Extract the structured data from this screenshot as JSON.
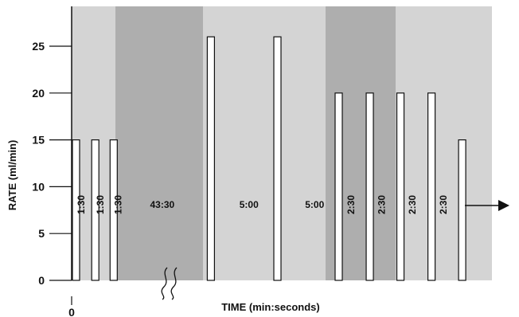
{
  "chart_data": {
    "type": "bar",
    "title": "",
    "xlabel": "TIME (min:seconds)",
    "ylabel": "RATE (ml/min)",
    "ylim": [
      0,
      27.5
    ],
    "y_ticks": [
      0,
      5,
      10,
      15,
      20,
      25
    ],
    "x_origin_label": "0",
    "grid": false,
    "axis_break": true,
    "continuation_arrow": true,
    "colors": {
      "light_band": "#d4d4d4",
      "dark_band": "#aeaeae",
      "pulse_fill": "#ffffff",
      "pulse_stroke": "#111111"
    },
    "bands": [
      {
        "shade": "light",
        "start": 0.0,
        "end": 1.0
      },
      {
        "shade": "dark",
        "start": 1.0,
        "end": 3.0
      },
      {
        "shade": "light",
        "start": 3.0,
        "end": 5.8
      },
      {
        "shade": "dark",
        "start": 5.8,
        "end": 7.4
      },
      {
        "shade": "light",
        "start": 7.4,
        "end": 9.6
      }
    ],
    "pulses": [
      {
        "time": 0.0,
        "rate": 15
      },
      {
        "time": 0.44,
        "rate": 15
      },
      {
        "time": 0.86,
        "rate": 15
      },
      {
        "time": 3.08,
        "rate": 26
      },
      {
        "time": 4.6,
        "rate": 26
      },
      {
        "time": 6.0,
        "rate": 20
      },
      {
        "time": 6.71,
        "rate": 20
      },
      {
        "time": 7.41,
        "rate": 20
      },
      {
        "time": 8.12,
        "rate": 20
      },
      {
        "time": 8.82,
        "rate": 15
      }
    ],
    "intervals": [
      {
        "label": "1:30",
        "at": 0.22,
        "vertical": true
      },
      {
        "label": "1:30",
        "at": 0.65,
        "vertical": true
      },
      {
        "label": "1:30",
        "at": 1.06,
        "vertical": true
      },
      {
        "label": "43:30",
        "at": 2.07,
        "vertical": false
      },
      {
        "label": "5:00",
        "at": 4.05,
        "vertical": false
      },
      {
        "label": "5:00",
        "at": 5.55,
        "vertical": false
      },
      {
        "label": "2:30",
        "at": 6.38,
        "vertical": true
      },
      {
        "label": "2:30",
        "at": 7.08,
        "vertical": true
      },
      {
        "label": "2:30",
        "at": 7.78,
        "vertical": true
      },
      {
        "label": "2:30",
        "at": 8.49,
        "vertical": true
      }
    ]
  }
}
